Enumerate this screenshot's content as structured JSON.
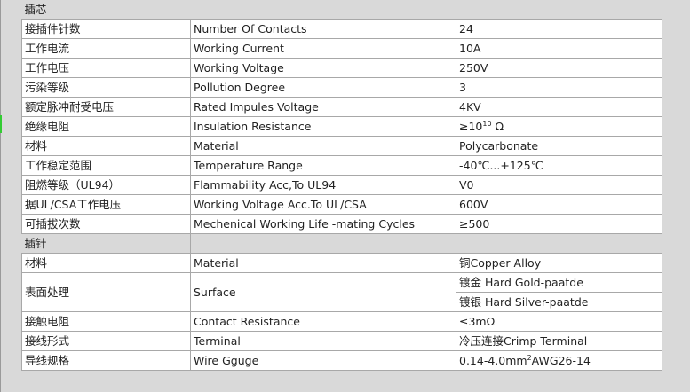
{
  "sections": [
    {
      "title": "插芯",
      "rows": [
        {
          "cn": "接插件针数",
          "en": "Number Of Contacts",
          "value": "24"
        },
        {
          "cn": "工作电流",
          "en": "Working Current",
          "value": "10A"
        },
        {
          "cn": "工作电压",
          "en": "Working Voltage",
          "value": "250V"
        },
        {
          "cn": "污染等级",
          "en": "Pollution Degree",
          "value": "3"
        },
        {
          "cn": "额定脉冲耐受电压",
          "en": "Rated Impules Voltage",
          "value": "4KV"
        },
        {
          "cn": "绝缘电阻",
          "en": "Insulation Resistance",
          "value_pre": "≥10",
          "value_sup": "10",
          "value_post": " Ω"
        },
        {
          "cn": "材料",
          "en": "Material",
          "value": "Polycarbonate"
        },
        {
          "cn": "工作稳定范围",
          "en": "Temperature Range",
          "value": "-40℃...+125℃"
        },
        {
          "cn": "阻燃等级（UL94）",
          "en": "Flammability Acc,To UL94",
          "value": "V0"
        },
        {
          "cn": "据UL/CSA工作电压",
          "en": "Working Voltage Acc.To UL/CSA",
          "value": "600V"
        },
        {
          "cn": "可插拔次数",
          "en": "Mechenical Working Life -mating Cycles",
          "value": "≥500"
        }
      ]
    },
    {
      "title": "插针",
      "rows": [
        {
          "cn": "材料",
          "en": "Material",
          "value": "铜Copper Alloy"
        },
        {
          "cn": "表面处理",
          "en": "Surface",
          "value": "镀金 Hard Gold-paatde",
          "value2": "镀银 Hard Silver-paatde"
        },
        {
          "cn": "接触电阻",
          "en": "Contact Resistance",
          "value": "≤3mΩ"
        },
        {
          "cn": "接线形式",
          "en": "Terminal",
          "value": "冷压连接Crimp Terminal"
        },
        {
          "cn": "导线规格",
          "en": "Wire Gguge",
          "value_pre": "0.14-4.0mm",
          "value_sup": "2",
          "value_post": "AWG26-14"
        }
      ]
    }
  ]
}
